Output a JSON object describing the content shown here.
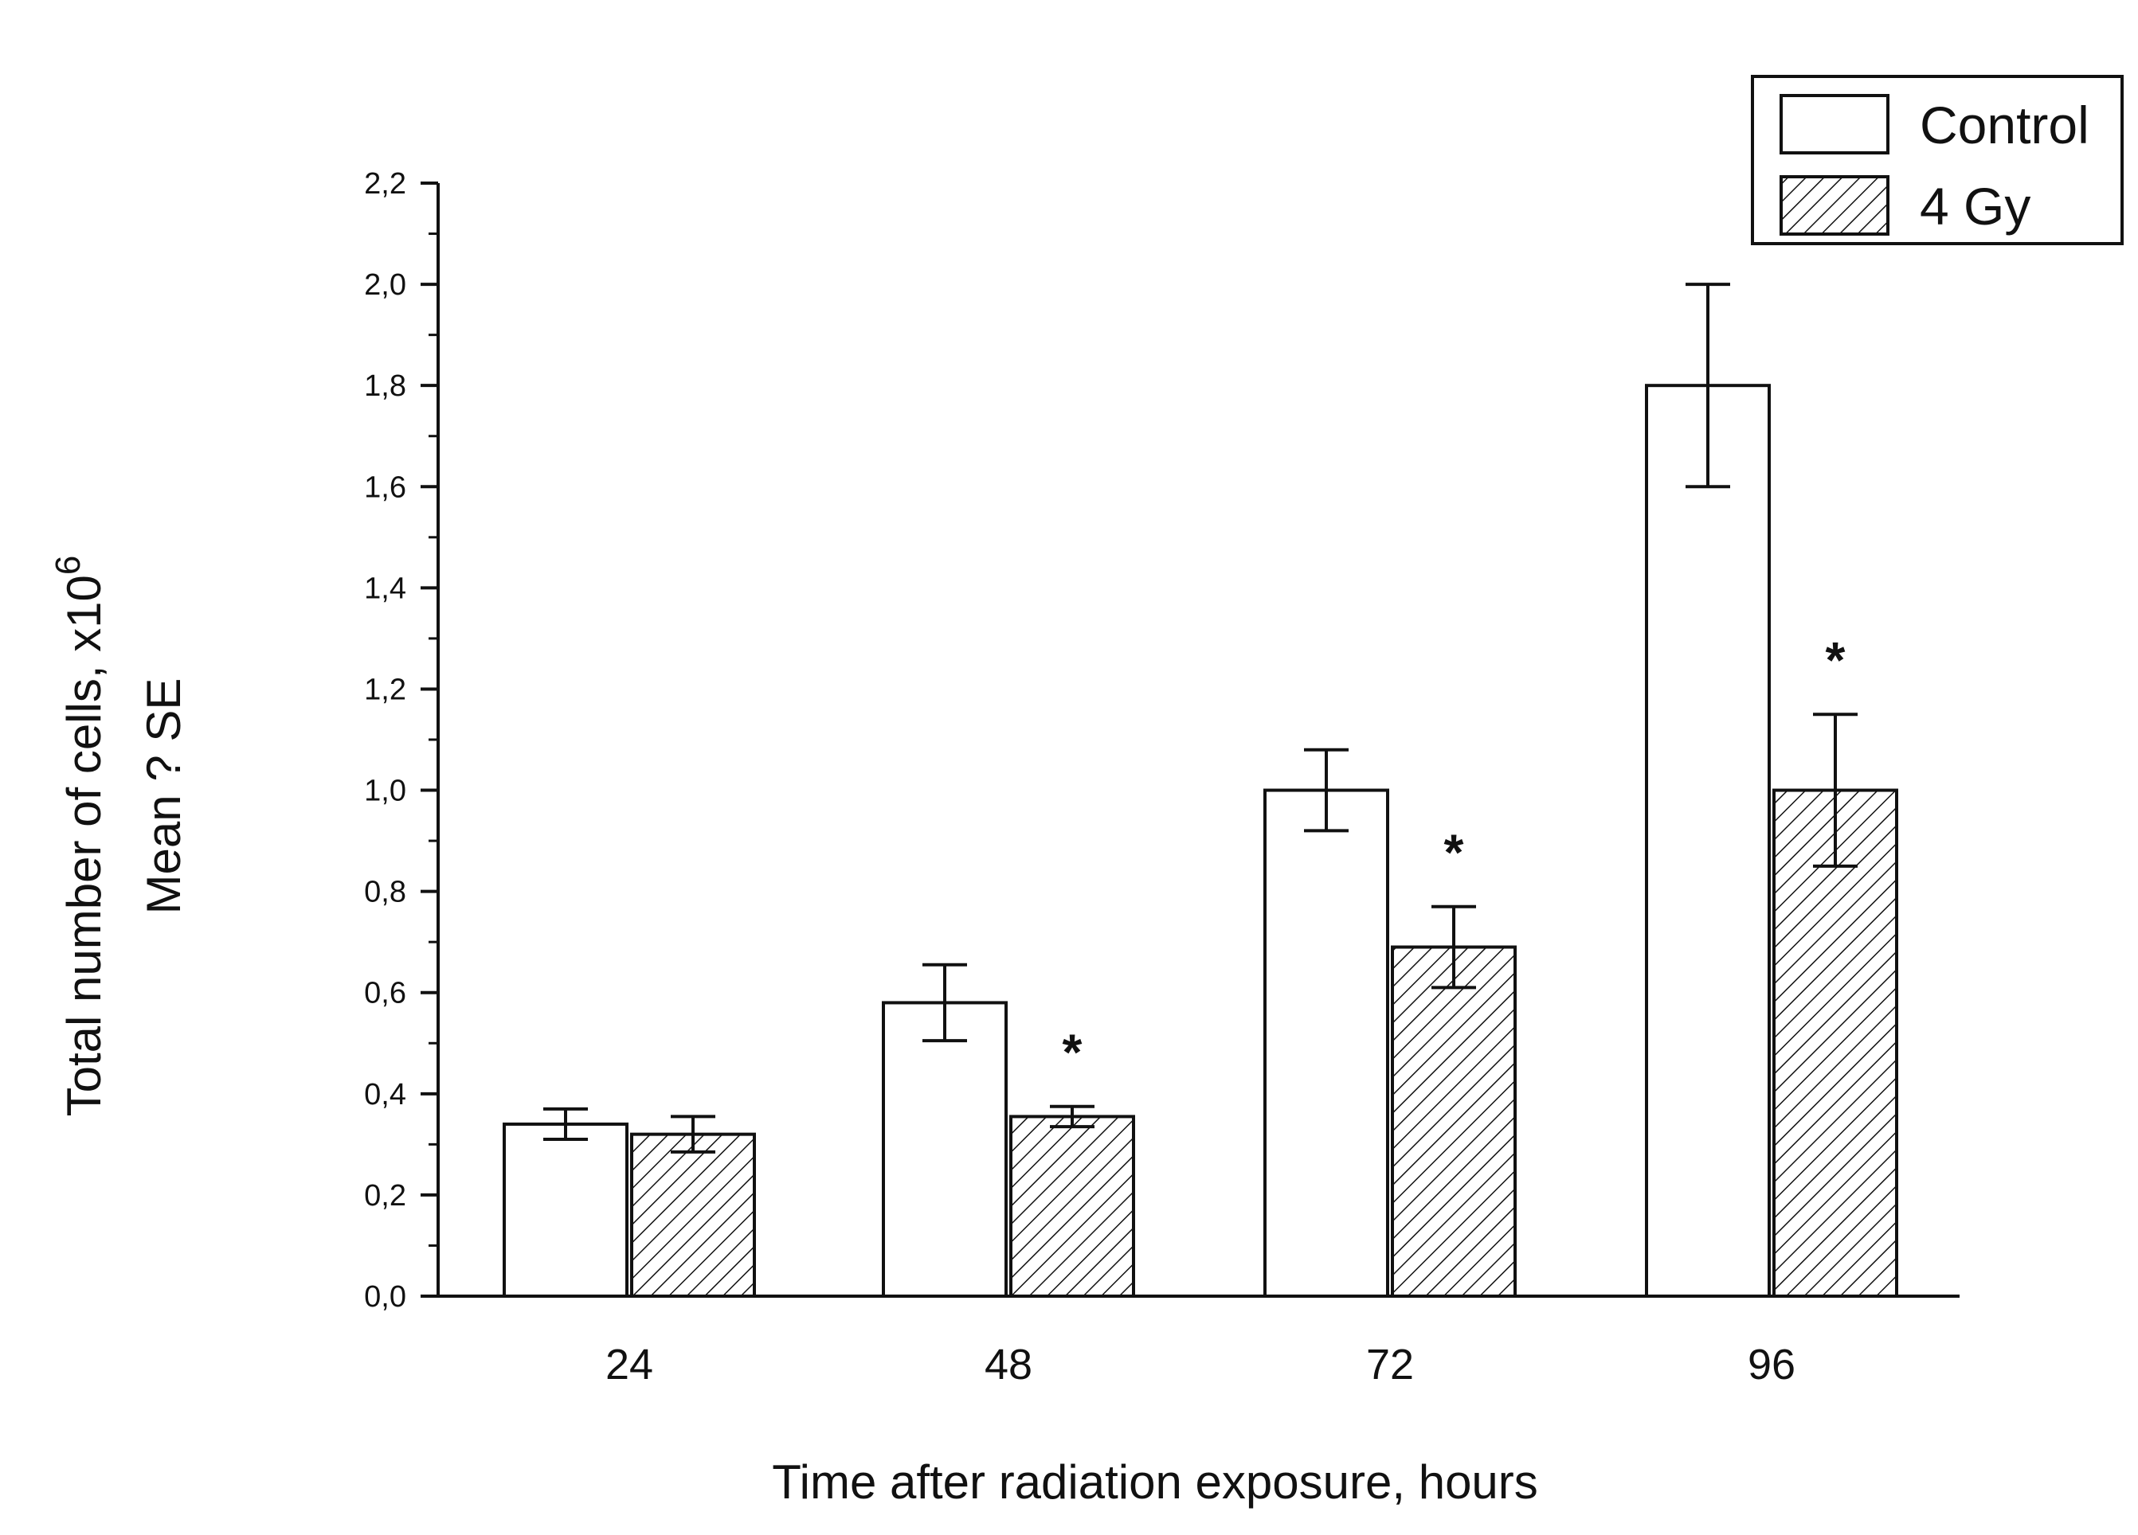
{
  "chart_data": {
    "type": "bar",
    "categories": [
      "24",
      "48",
      "72",
      "96"
    ],
    "series": [
      {
        "name": "Control",
        "values": [
          0.34,
          0.58,
          1.0,
          1.8
        ],
        "errors": [
          0.03,
          0.075,
          0.08,
          0.2
        ],
        "fill": "open"
      },
      {
        "name": "4 Gy",
        "values": [
          0.32,
          0.355,
          0.69,
          1.0
        ],
        "errors": [
          0.035,
          0.02,
          0.08,
          0.15
        ],
        "fill": "hatched"
      }
    ],
    "annotations": [
      {
        "category": "48",
        "series": "4 Gy",
        "text": "*"
      },
      {
        "category": "72",
        "series": "4 Gy",
        "text": "*"
      },
      {
        "category": "96",
        "series": "4 Gy",
        "text": "*"
      }
    ],
    "xlabel": "Time after radiation exposure, hours",
    "ylabel_line1": "Total number of cells, x10",
    "ylabel_superscript": "6",
    "ylabel_line2": "Mean ? SE",
    "ylim": [
      0,
      2.2
    ],
    "yticks": [
      0.0,
      0.2,
      0.4,
      0.6,
      0.8,
      1.0,
      1.2,
      1.4,
      1.6,
      1.8,
      2.0,
      2.2
    ],
    "ytick_labels": [
      "0,0",
      "0,2",
      "0,4",
      "0,6",
      "0,8",
      "1,0",
      "1,2",
      "1,4",
      "1,6",
      "1,8",
      "2,0",
      "2,2"
    ],
    "grid": false,
    "legend": "top-right",
    "colors": {
      "stroke": "#111111",
      "background": "#ffffff"
    }
  }
}
